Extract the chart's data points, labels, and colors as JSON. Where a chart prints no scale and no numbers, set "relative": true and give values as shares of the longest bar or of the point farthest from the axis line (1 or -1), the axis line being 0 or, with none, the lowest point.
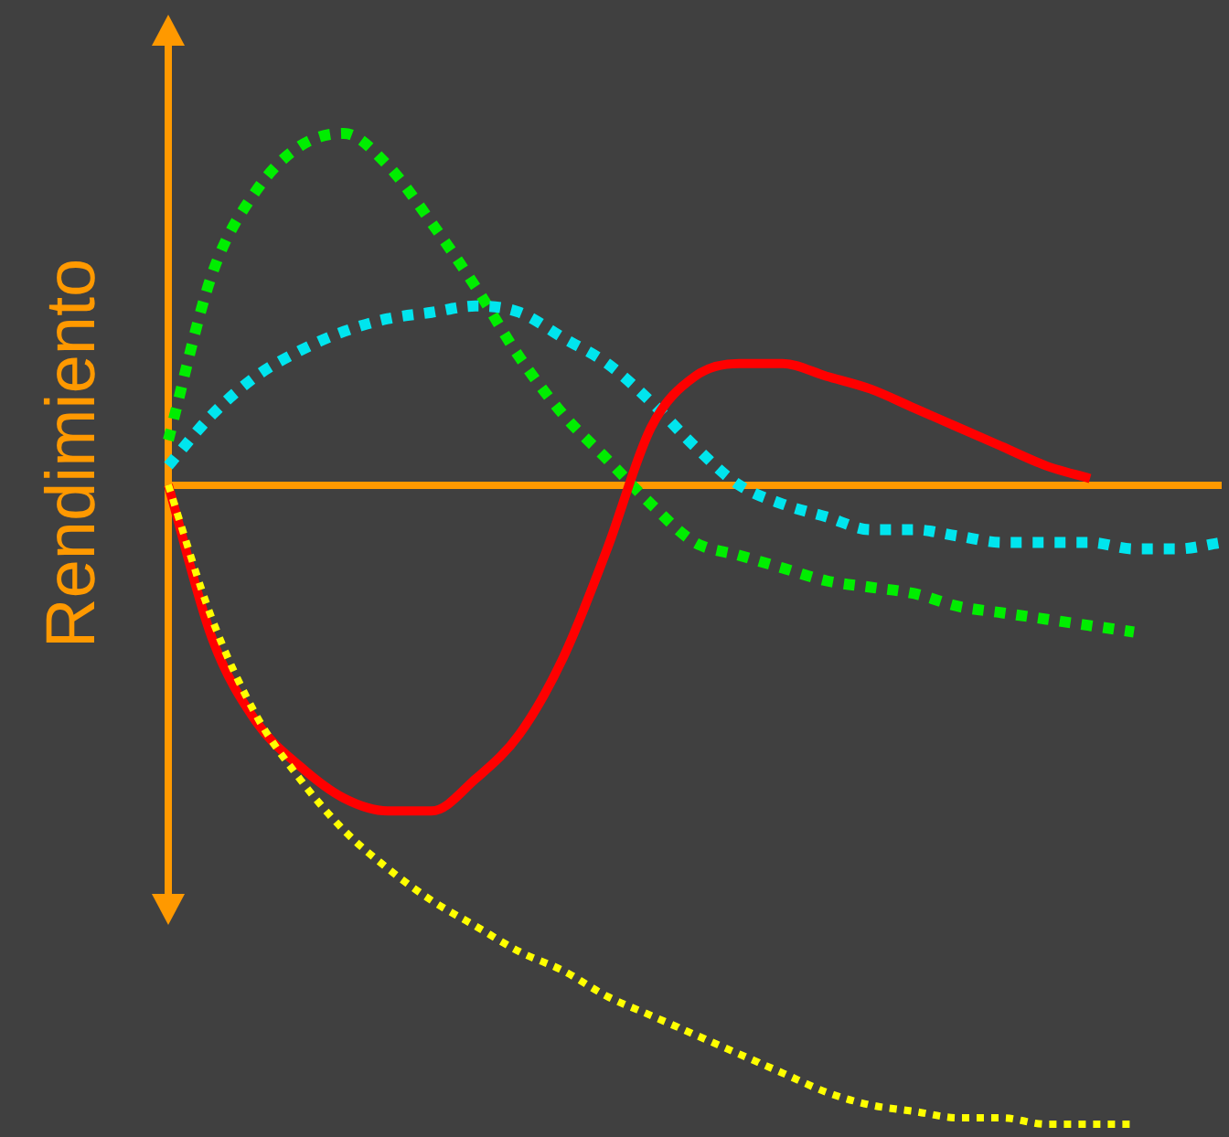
{
  "chart_data": {
    "type": "line",
    "relative": true,
    "ylabel": "Rendimiento",
    "legend": false,
    "marker": "none",
    "ref_lines": [
      {
        "axis": "y",
        "value": 0,
        "color": "#ff9900"
      }
    ],
    "categories": [
      null,
      null,
      null,
      null,
      null,
      null,
      null,
      null,
      null,
      null,
      null,
      null,
      null,
      null,
      null,
      null,
      null,
      null,
      null,
      null,
      null,
      null,
      null,
      null,
      null
    ],
    "series": [
      {
        "color": "#00ee00",
        "line_style": "dotted",
        "values": [
          0.07,
          0.33,
          0.46,
          0.53,
          0.55,
          0.5,
          0.41,
          0.31,
          0.2,
          0.11,
          0.04,
          -0.03,
          -0.09,
          -0.11,
          -0.13,
          -0.15,
          -0.16,
          -0.17,
          -0.19,
          -0.2,
          -0.21,
          -0.22,
          -0.23,
          null,
          null
        ]
      },
      {
        "color": "#00e5ee",
        "line_style": "dotted",
        "values": [
          0.03,
          0.11,
          0.17,
          0.21,
          0.24,
          0.26,
          0.27,
          0.28,
          0.27,
          0.23,
          0.19,
          0.13,
          0.06,
          0,
          -0.03,
          -0.05,
          -0.07,
          -0.07,
          -0.08,
          -0.09,
          -0.09,
          -0.09,
          -0.1,
          -0.1,
          -0.09
        ]
      },
      {
        "color": "#ff0000",
        "line_style": "solid",
        "values": [
          0,
          -0.24,
          -0.37,
          -0.44,
          -0.49,
          -0.51,
          -0.51,
          -0.46,
          -0.39,
          -0.27,
          -0.1,
          0.09,
          0.17,
          0.19,
          0.19,
          0.17,
          0.15,
          0.12,
          0.09,
          0.06,
          0.03,
          0.01,
          null,
          null,
          null
        ]
      },
      {
        "color": "#ffff00",
        "line_style": "dotted",
        "values": [
          0,
          -0.21,
          -0.36,
          -0.46,
          -0.54,
          -0.6,
          -0.65,
          -0.69,
          -0.73,
          -0.76,
          -0.8,
          -0.83,
          -0.86,
          -0.89,
          -0.92,
          -0.95,
          -0.97,
          -0.98,
          -0.99,
          -0.99,
          -1,
          -1,
          -1,
          null,
          null
        ]
      }
    ]
  }
}
